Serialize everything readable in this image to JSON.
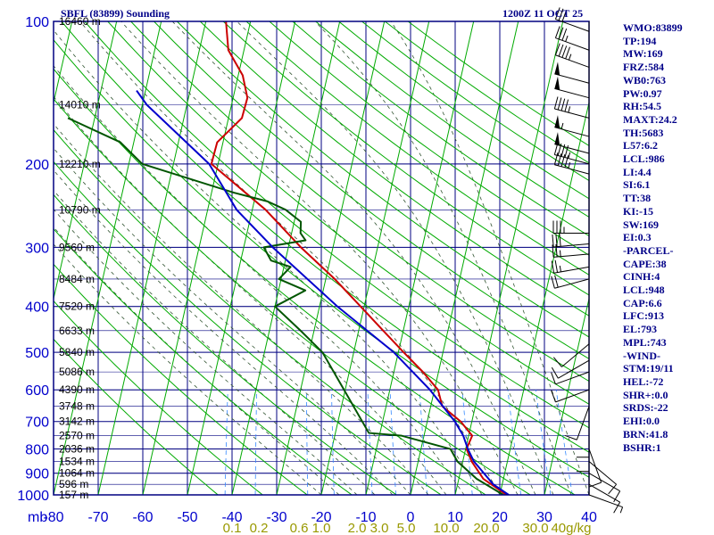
{
  "header": {
    "station": "SBFL (83899) Sounding",
    "time": "1200Z 11 OCT 25"
  },
  "indices": [
    "WMO:83899",
    "TP:194",
    "MW:169",
    "FRZ:584",
    "WB0:763",
    "PW:0.97",
    "RH:54.5",
    "MAXT:24.2",
    "TH:5683",
    "L57:6.2",
    "LCL:986",
    "LI:4.4",
    "SI:6.1",
    "TT:38",
    "KI:-15",
    "SW:169",
    "EI:0.3",
    "-PARCEL-",
    "CAPE:38",
    "CINH:4",
    "LCL:948",
    "CAP:6.6",
    "LFC:913",
    "EL:793",
    "MPL:743",
    "-WIND-",
    "STM:19/11",
    "HEL:-72",
    "SHR+:0.0",
    "SRDS:-22",
    "EHI:0.0",
    "BRN:41.8",
    "BSHR:1"
  ],
  "colors": {
    "frame": "#000080",
    "temperature": "#cc0000",
    "dewpoint": "#005500",
    "parcel": "#0000cc",
    "dry_adiabat": "#00aa00",
    "moist_adiabat": "#335533",
    "mixing_ratio": "#3388ff",
    "axis_text": "#0000cc",
    "mixing_text": "#999900"
  },
  "chart_data": {
    "type": "line",
    "chart_kind": "skew-T log-P sounding",
    "y_axis": {
      "label": "mb",
      "scale": "log",
      "range": [
        1000,
        100
      ],
      "ticks": [
        100,
        200,
        300,
        400,
        500,
        600,
        700,
        800,
        900,
        1000
      ]
    },
    "x_axis": {
      "unit": "°C",
      "range": [
        -80,
        40
      ],
      "ticks": [
        -80,
        -70,
        -60,
        -50,
        -40,
        -30,
        -20,
        -10,
        0,
        10,
        20,
        30,
        40
      ],
      "tick_labels": [
        "-80",
        "-70",
        "-60",
        "-50",
        "-40",
        "-30",
        "-20",
        "-10",
        "0",
        "10",
        "20",
        "30",
        "40"
      ]
    },
    "height_labels": [
      {
        "p": 100,
        "label": "16460 m"
      },
      {
        "p": 150,
        "label": "14010 m"
      },
      {
        "p": 200,
        "label": "12210 m"
      },
      {
        "p": 250,
        "label": "10790 m"
      },
      {
        "p": 300,
        "label": "9560 m"
      },
      {
        "p": 350,
        "label": "8484 m"
      },
      {
        "p": 400,
        "label": "7520 m"
      },
      {
        "p": 450,
        "label": "6633 m"
      },
      {
        "p": 500,
        "label": "5840 m"
      },
      {
        "p": 550,
        "label": "5086 m"
      },
      {
        "p": 600,
        "label": "4390 m"
      },
      {
        "p": 650,
        "label": "3748 m"
      },
      {
        "p": 700,
        "label": "3142 m"
      },
      {
        "p": 750,
        "label": "2570 m"
      },
      {
        "p": 800,
        "label": "2036 m"
      },
      {
        "p": 850,
        "label": "1534 m"
      },
      {
        "p": 900,
        "label": "1064 m"
      },
      {
        "p": 950,
        "label": "596 m"
      },
      {
        "p": 1000,
        "label": "157 m"
      }
    ],
    "mixing_ratio_labels": [
      {
        "w": 0.1,
        "label": "0.1",
        "t": -40
      },
      {
        "w": 0.2,
        "label": "0.2",
        "t": -34
      },
      {
        "w": 0.6,
        "label": "0.6",
        "t": -25
      },
      {
        "w": 1.0,
        "label": "1.0",
        "t": -20
      },
      {
        "w": 2.0,
        "label": "2.0",
        "t": -12
      },
      {
        "w": 3.0,
        "label": "3.0",
        "t": -7
      },
      {
        "w": 5.0,
        "label": "5.0",
        "t": -1
      },
      {
        "w": 10.0,
        "label": "10.0",
        "t": 8
      },
      {
        "w": 20.0,
        "label": "20.0",
        "t": 17
      },
      {
        "w": 30.0,
        "label": "30.0",
        "t": 28
      },
      {
        "w": 40.0,
        "label": "40g/kg",
        "t": 36
      }
    ],
    "series": [
      {
        "key": "temperature",
        "points": [
          [
            1000,
            21.5
          ],
          [
            925,
            15.5
          ],
          [
            850,
            12.0
          ],
          [
            800,
            10.2
          ],
          [
            750,
            10.8
          ],
          [
            700,
            7.5
          ],
          [
            650,
            2.6
          ],
          [
            600,
            0.8
          ],
          [
            550,
            -3.5
          ],
          [
            500,
            -8.8
          ],
          [
            450,
            -14.5
          ],
          [
            400,
            -20.8
          ],
          [
            350,
            -28.0
          ],
          [
            300,
            -37.2
          ],
          [
            250,
            -47.0
          ],
          [
            200,
            -61.5
          ],
          [
            180,
            -61.3
          ],
          [
            160,
            -57.0
          ],
          [
            145,
            -56.8
          ],
          [
            130,
            -59.0
          ],
          [
            115,
            -63.5
          ],
          [
            100,
            -65.5
          ]
        ]
      },
      {
        "key": "dewpoint",
        "points": [
          [
            1000,
            20.8
          ],
          [
            925,
            14.0
          ],
          [
            850,
            8.8
          ],
          [
            800,
            6.6
          ],
          [
            750,
            -5.0
          ],
          [
            740,
            -12.5
          ],
          [
            500,
            -27.0
          ],
          [
            450,
            -33.0
          ],
          [
            400,
            -40.0
          ],
          [
            370,
            -34.0
          ],
          [
            350,
            -40.5
          ],
          [
            330,
            -38.5
          ],
          [
            320,
            -43.2
          ],
          [
            300,
            -45.5
          ],
          [
            290,
            -36.5
          ],
          [
            280,
            -38.0
          ],
          [
            265,
            -38.5
          ],
          [
            250,
            -42.5
          ],
          [
            240,
            -47.0
          ],
          [
            230,
            -55.0
          ],
          [
            200,
            -77.0
          ],
          [
            180,
            -83.0
          ],
          [
            160,
            -96.0
          ]
        ]
      },
      {
        "key": "parcel",
        "points": [
          [
            1000,
            22.0
          ],
          [
            950,
            18.0
          ],
          [
            850,
            12.5
          ],
          [
            800,
            10.5
          ],
          [
            750,
            8.8
          ],
          [
            700,
            6.2
          ],
          [
            600,
            -1.0
          ],
          [
            500,
            -11.0
          ],
          [
            400,
            -26.0
          ],
          [
            300,
            -43.5
          ],
          [
            250,
            -53.5
          ],
          [
            200,
            -62.0
          ],
          [
            150,
            -79.0
          ],
          [
            140,
            -82.0
          ]
        ]
      }
    ],
    "wind_barbs": [
      {
        "p": 105,
        "dir": 290,
        "kt": 30
      },
      {
        "p": 115,
        "dir": 290,
        "kt": 35
      },
      {
        "p": 125,
        "dir": 290,
        "kt": 45
      },
      {
        "p": 135,
        "dir": 285,
        "kt": 50
      },
      {
        "p": 145,
        "dir": 285,
        "kt": 50
      },
      {
        "p": 160,
        "dir": 285,
        "kt": 45
      },
      {
        "p": 175,
        "dir": 285,
        "kt": 55
      },
      {
        "p": 190,
        "dir": 285,
        "kt": 50
      },
      {
        "p": 200,
        "dir": 285,
        "kt": 45
      },
      {
        "p": 210,
        "dir": 285,
        "kt": 45
      },
      {
        "p": 280,
        "dir": 270,
        "kt": 35
      },
      {
        "p": 295,
        "dir": 265,
        "kt": 30
      },
      {
        "p": 310,
        "dir": 265,
        "kt": 25
      },
      {
        "p": 330,
        "dir": 260,
        "kt": 25
      },
      {
        "p": 350,
        "dir": 255,
        "kt": 20
      },
      {
        "p": 480,
        "dir": 230,
        "kt": 10
      },
      {
        "p": 520,
        "dir": 240,
        "kt": 10
      },
      {
        "p": 550,
        "dir": 250,
        "kt": 10
      },
      {
        "p": 600,
        "dir": 250,
        "kt": 10
      },
      {
        "p": 650,
        "dir": 200,
        "kt": 10
      },
      {
        "p": 700,
        "dir": 180,
        "kt": 10
      },
      {
        "p": 750,
        "dir": 180,
        "kt": 10
      },
      {
        "p": 800,
        "dir": 160,
        "kt": 10
      },
      {
        "p": 850,
        "dir": 130,
        "kt": 10
      },
      {
        "p": 900,
        "dir": 120,
        "kt": 10
      },
      {
        "p": 950,
        "dir": 120,
        "kt": 10
      },
      {
        "p": 1000,
        "dir": 110,
        "kt": 5
      }
    ]
  }
}
